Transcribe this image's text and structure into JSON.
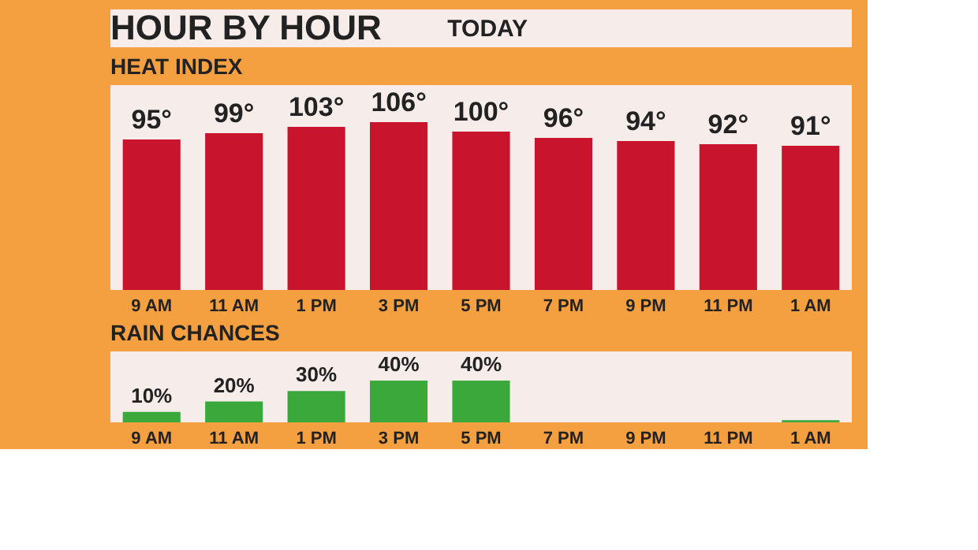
{
  "chart_data": [
    {
      "type": "other",
      "title": "HOUR BY HOUR",
      "subtitle": "TODAY"
    },
    {
      "type": "bar",
      "title": "HEAT INDEX",
      "categories": [
        "9 AM",
        "11 AM",
        "1 PM",
        "3 PM",
        "5 PM",
        "7 PM",
        "9 PM",
        "11 PM",
        "1 AM"
      ],
      "values": [
        95,
        99,
        103,
        106,
        100,
        96,
        94,
        92,
        91
      ],
      "value_labels": [
        "95°",
        "99°",
        "103°",
        "106°",
        "100°",
        "96°",
        "94°",
        "92°",
        "91°"
      ],
      "color": "#c8142c"
    },
    {
      "type": "bar",
      "title": "RAIN CHANCES",
      "categories": [
        "9 AM",
        "11 AM",
        "1 PM",
        "3 PM",
        "5 PM",
        "7 PM",
        "9 PM",
        "11 PM",
        "1 AM"
      ],
      "values": [
        10,
        20,
        30,
        40,
        40,
        0,
        0,
        0,
        2
      ],
      "value_labels": [
        "10%",
        "20%",
        "30%",
        "40%",
        "40%",
        null,
        null,
        null,
        null
      ],
      "color": "#3aa83a"
    }
  ]
}
